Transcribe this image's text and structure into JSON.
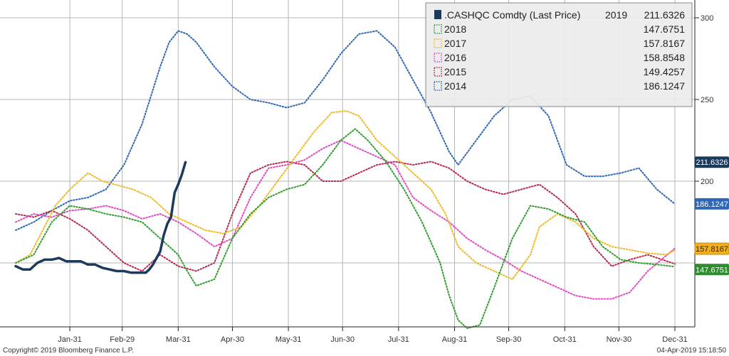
{
  "chart_data": {
    "type": "line",
    "title": "",
    "xlabel": "",
    "ylabel": "",
    "ylim": [
      100,
      300
    ],
    "xlim": [
      0,
      365
    ],
    "grid": true,
    "legend_position": "top-right",
    "legend_title": ".CASHQC Comdty (Last Price)",
    "x_ticks": [
      {
        "label": "Jan-31",
        "x": 30
      },
      {
        "label": "Feb-29",
        "x": 59
      },
      {
        "label": "Mar-31",
        "x": 90
      },
      {
        "label": "Apr-30",
        "x": 120
      },
      {
        "label": "May-31",
        "x": 151
      },
      {
        "label": "Jun-30",
        "x": 181
      },
      {
        "label": "Jul-31",
        "x": 212
      },
      {
        "label": "Aug-31",
        "x": 243
      },
      {
        "label": "Sep-30",
        "x": 273
      },
      {
        "label": "Oct-31",
        "x": 304
      },
      {
        "label": "Nov-30",
        "x": 334
      },
      {
        "label": "Dec-31",
        "x": 365
      }
    ],
    "y_ticks": [
      300,
      250,
      200
    ],
    "series": [
      {
        "name": "2019",
        "last": "211.6326",
        "color": "#1b3a5c",
        "style": "solid",
        "tag_color": "#1b3a5c",
        "tag_text_color": "#ffffff",
        "x": [
          0,
          4,
          8,
          12,
          16,
          20,
          24,
          28,
          32,
          36,
          40,
          44,
          48,
          52,
          56,
          60,
          64,
          68,
          72,
          74,
          76,
          78,
          80,
          82,
          84,
          86,
          88,
          90,
          92,
          94
        ],
        "y": [
          148,
          146,
          146,
          150,
          152,
          152,
          153,
          151,
          151,
          151,
          149,
          149,
          147,
          146,
          145,
          145,
          144,
          144,
          144,
          146,
          149,
          153,
          157,
          167,
          174,
          178,
          193,
          198,
          204,
          211.6
        ]
      },
      {
        "name": "2018",
        "last": "147.6751",
        "color": "#2e9e2e",
        "style": "dotted",
        "tag_color": "#2e8b2e",
        "tag_text_color": "#ffffff",
        "x": [
          0,
          10,
          20,
          30,
          40,
          50,
          60,
          70,
          80,
          90,
          95,
          100,
          110,
          120,
          130,
          140,
          150,
          160,
          170,
          180,
          188,
          195,
          205,
          215,
          225,
          235,
          240,
          245,
          250,
          257,
          265,
          275,
          285,
          295,
          305,
          315,
          325,
          335,
          345,
          355,
          365
        ],
        "y": [
          150,
          155,
          175,
          185,
          183,
          180,
          178,
          175,
          165,
          155,
          145,
          136,
          140,
          165,
          180,
          190,
          195,
          198,
          210,
          225,
          232,
          225,
          212,
          195,
          175,
          150,
          130,
          115,
          110,
          112,
          135,
          165,
          185,
          183,
          178,
          175,
          160,
          152,
          150,
          149,
          147.7
        ]
      },
      {
        "name": "2017",
        "last": "157.8167",
        "color": "#f2b824",
        "style": "dotted",
        "tag_color": "#f2b11c",
        "tag_text_color": "#222222",
        "x": [
          0,
          8,
          15,
          22,
          30,
          40,
          48,
          55,
          65,
          75,
          85,
          95,
          105,
          115,
          125,
          135,
          145,
          155,
          165,
          175,
          183,
          190,
          200,
          210,
          220,
          230,
          238,
          245,
          255,
          265,
          275,
          285,
          290,
          300,
          310,
          320,
          330,
          340,
          350,
          360,
          365
        ],
        "y": [
          150,
          155,
          170,
          185,
          195,
          205,
          200,
          198,
          195,
          190,
          180,
          175,
          170,
          168,
          172,
          185,
          200,
          215,
          230,
          242,
          243,
          240,
          225,
          215,
          205,
          195,
          180,
          160,
          150,
          145,
          140,
          155,
          172,
          180,
          175,
          165,
          160,
          158,
          156,
          155,
          157.8
        ]
      },
      {
        "name": "2016",
        "last": "158.8548",
        "color": "#e04ac4",
        "style": "dotted",
        "tag_color": "#e04ac4",
        "tag_text_color": "#ffffff",
        "x": [
          0,
          10,
          20,
          30,
          40,
          50,
          60,
          70,
          80,
          90,
          100,
          110,
          120,
          130,
          140,
          150,
          160,
          170,
          180,
          190,
          200,
          210,
          220,
          230,
          240,
          250,
          260,
          270,
          280,
          290,
          300,
          310,
          320,
          330,
          340,
          350,
          365
        ],
        "y": [
          175,
          180,
          178,
          182,
          183,
          185,
          182,
          177,
          180,
          175,
          168,
          160,
          165,
          190,
          208,
          210,
          213,
          220,
          225,
          220,
          215,
          210,
          190,
          182,
          175,
          165,
          158,
          152,
          145,
          140,
          135,
          130,
          128,
          128,
          132,
          145,
          158.9
        ]
      },
      {
        "name": "2015",
        "last": "149.4257",
        "color": "#b8284a",
        "style": "dotted",
        "tag_color": "#b8284a",
        "tag_text_color": "#ffffff",
        "x": [
          0,
          10,
          20,
          30,
          40,
          50,
          60,
          70,
          80,
          90,
          100,
          110,
          120,
          130,
          140,
          150,
          160,
          170,
          180,
          190,
          200,
          210,
          220,
          230,
          240,
          250,
          260,
          270,
          280,
          290,
          300,
          310,
          320,
          330,
          340,
          350,
          365
        ],
        "y": [
          180,
          178,
          182,
          177,
          170,
          160,
          150,
          145,
          155,
          148,
          145,
          150,
          180,
          205,
          210,
          212,
          210,
          200,
          200,
          205,
          210,
          212,
          210,
          212,
          208,
          200,
          195,
          192,
          195,
          198,
          190,
          180,
          160,
          148,
          152,
          155,
          149.4
        ]
      },
      {
        "name": "2014",
        "last": "186.1247",
        "color": "#2e66b8",
        "style": "dotted",
        "tag_color": "#2e66b8",
        "tag_text_color": "#ffffff",
        "x": [
          0,
          10,
          20,
          30,
          40,
          50,
          60,
          70,
          80,
          85,
          90,
          95,
          100,
          110,
          120,
          130,
          140,
          150,
          160,
          170,
          180,
          190,
          200,
          210,
          220,
          230,
          240,
          245,
          255,
          265,
          275,
          285,
          295,
          305,
          315,
          325,
          335,
          345,
          355,
          365
        ],
        "y": [
          170,
          175,
          182,
          188,
          190,
          195,
          210,
          235,
          270,
          285,
          292,
          290,
          285,
          270,
          258,
          250,
          248,
          245,
          248,
          262,
          278,
          290,
          292,
          282,
          262,
          242,
          218,
          210,
          225,
          240,
          250,
          252,
          240,
          210,
          203,
          203,
          205,
          208,
          195,
          186.1
        ]
      }
    ]
  },
  "footer": {
    "copyright": "Copyright© 2019 Bloomberg Finance L.P.",
    "timestamp": "04-Apr-2019 15:18:50"
  }
}
